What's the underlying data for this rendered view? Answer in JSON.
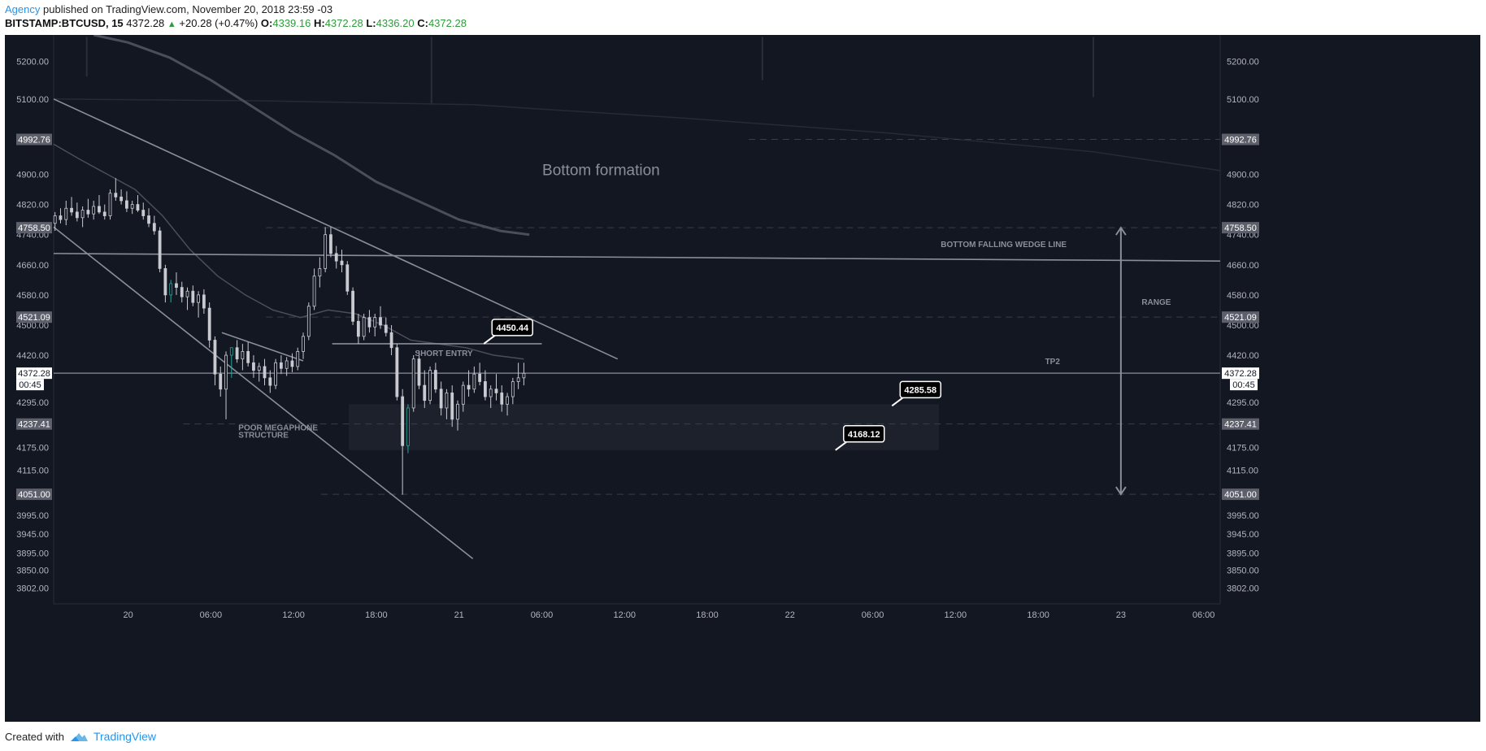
{
  "header": {
    "author": "Agency",
    "published_text": "published on TradingView.com, November 20, 2018 23:59 -03",
    "symbol": "BITSTAMP:BTCUSD, 15",
    "last_price": "4372.28",
    "change_arrow": "▲",
    "change": "+20.28 (+0.47%)",
    "o_label": "O:",
    "o_value": "4339.16",
    "h_label": "H:",
    "h_value": "4372.28",
    "l_label": "L:",
    "l_value": "4336.20",
    "c_label": "C:",
    "c_value": "4372.28"
  },
  "footer": {
    "created_with": "Created with",
    "brand": "TradingView",
    "brand_icon": "tradingview-cloud-icon"
  },
  "colors": {
    "background": "#131722",
    "axis_text": "#b2b5be",
    "grid": "#1e2230",
    "line": "#8a8e99",
    "ma": "#4a4e5a",
    "candle": "#c8cad0",
    "candle_teal": "#26a69a",
    "box": "#1e222d",
    "accent": "#2196f3",
    "up_green": "#2e9c3a"
  },
  "chart_data": {
    "type": "candlestick",
    "title": "",
    "ylim": [
      3760,
      5270
    ],
    "yticks": [
      "5200.00",
      "5100.00",
      "4900.00",
      "4820.00",
      "4740.00",
      "4660.00",
      "4580.00",
      "4500.00",
      "4420.00",
      "4295.00",
      "4175.00",
      "4115.00",
      "3995.00",
      "3945.00",
      "3895.00",
      "3850.00",
      "3802.00"
    ],
    "ytick_values": [
      5200,
      5100,
      4900,
      4820,
      4740,
      4660,
      4580,
      4500,
      4420,
      4295,
      4175,
      4115,
      3995,
      3945,
      3895,
      3850,
      3802
    ],
    "highlight_levels": [
      "4992.76",
      "4758.50",
      "4521.09",
      "4372.28",
      "4237.41",
      "4051.00"
    ],
    "highlight_values": [
      4992.76,
      4758.5,
      4521.09,
      4372.28,
      4237.41,
      4051.0
    ],
    "countdown": "00:45",
    "x_labels": [
      "20",
      "06:00",
      "12:00",
      "18:00",
      "21",
      "06:00",
      "12:00",
      "18:00",
      "22",
      "06:00",
      "12:00",
      "18:00",
      "23",
      "06:00"
    ],
    "x_label_hours": [
      0,
      6,
      12,
      18,
      24,
      30,
      36,
      42,
      48,
      54,
      60,
      66,
      72,
      78
    ],
    "x_start_hour": -5.4,
    "x_end_hour": 79.2,
    "candles": [
      {
        "t": -5.3,
        "o": 4770,
        "h": 4800,
        "l": 4750,
        "c": 4790
      },
      {
        "t": -4.9,
        "o": 4790,
        "h": 4810,
        "l": 4770,
        "c": 4780
      },
      {
        "t": -4.5,
        "o": 4780,
        "h": 4830,
        "l": 4765,
        "c": 4810
      },
      {
        "t": -4.1,
        "o": 4810,
        "h": 4840,
        "l": 4790,
        "c": 4800
      },
      {
        "t": -3.7,
        "o": 4800,
        "h": 4825,
        "l": 4775,
        "c": 4785
      },
      {
        "t": -3.3,
        "o": 4785,
        "h": 4815,
        "l": 4760,
        "c": 4805
      },
      {
        "t": -2.9,
        "o": 4805,
        "h": 4835,
        "l": 4785,
        "c": 4795
      },
      {
        "t": -2.5,
        "o": 4795,
        "h": 4830,
        "l": 4780,
        "c": 4815
      },
      {
        "t": -2.1,
        "o": 4815,
        "h": 4845,
        "l": 4795,
        "c": 4800
      },
      {
        "t": -1.7,
        "o": 4800,
        "h": 4820,
        "l": 4780,
        "c": 4790
      },
      {
        "t": -1.3,
        "o": 4790,
        "h": 4860,
        "l": 4780,
        "c": 4850
      },
      {
        "t": -0.9,
        "o": 4850,
        "h": 4890,
        "l": 4830,
        "c": 4840
      },
      {
        "t": -0.5,
        "o": 4840,
        "h": 4860,
        "l": 4820,
        "c": 4830
      },
      {
        "t": -0.1,
        "o": 4830,
        "h": 4855,
        "l": 4800,
        "c": 4810
      },
      {
        "t": 0.3,
        "o": 4810,
        "h": 4830,
        "l": 4795,
        "c": 4820
      },
      {
        "t": 0.7,
        "o": 4820,
        "h": 4845,
        "l": 4800,
        "c": 4805
      },
      {
        "t": 1.1,
        "o": 4805,
        "h": 4825,
        "l": 4780,
        "c": 4790
      },
      {
        "t": 1.5,
        "o": 4790,
        "h": 4810,
        "l": 4760,
        "c": 4770
      },
      {
        "t": 1.9,
        "o": 4770,
        "h": 4790,
        "l": 4740,
        "c": 4750
      },
      {
        "t": 2.3,
        "o": 4750,
        "h": 4760,
        "l": 4640,
        "c": 4650
      },
      {
        "t": 2.7,
        "o": 4650,
        "h": 4660,
        "l": 4560,
        "c": 4580
      },
      {
        "t": 3.1,
        "o": 4580,
        "h": 4620,
        "l": 4560,
        "c": 4610,
        "teal": true
      },
      {
        "t": 3.5,
        "o": 4610,
        "h": 4640,
        "l": 4580,
        "c": 4600
      },
      {
        "t": 3.9,
        "o": 4600,
        "h": 4615,
        "l": 4560,
        "c": 4575
      },
      {
        "t": 4.3,
        "o": 4575,
        "h": 4600,
        "l": 4540,
        "c": 4590
      },
      {
        "t": 4.7,
        "o": 4590,
        "h": 4605,
        "l": 4550,
        "c": 4560
      },
      {
        "t": 5.1,
        "o": 4560,
        "h": 4590,
        "l": 4520,
        "c": 4580
      },
      {
        "t": 5.5,
        "o": 4580,
        "h": 4595,
        "l": 4530,
        "c": 4545
      },
      {
        "t": 5.9,
        "o": 4545,
        "h": 4560,
        "l": 4440,
        "c": 4460
      },
      {
        "t": 6.3,
        "o": 4460,
        "h": 4470,
        "l": 4340,
        "c": 4370
      },
      {
        "t": 6.7,
        "o": 4370,
        "h": 4390,
        "l": 4310,
        "c": 4330
      },
      {
        "t": 7.1,
        "o": 4330,
        "h": 4430,
        "l": 4250,
        "c": 4420
      },
      {
        "t": 7.5,
        "o": 4420,
        "h": 4440,
        "l": 4360,
        "c": 4440,
        "teal": true
      },
      {
        "t": 7.9,
        "o": 4440,
        "h": 4460,
        "l": 4400,
        "c": 4410
      },
      {
        "t": 8.3,
        "o": 4410,
        "h": 4450,
        "l": 4380,
        "c": 4430
      },
      {
        "t": 8.7,
        "o": 4430,
        "h": 4455,
        "l": 4390,
        "c": 4400
      },
      {
        "t": 9.1,
        "o": 4400,
        "h": 4420,
        "l": 4360,
        "c": 4380
      },
      {
        "t": 9.5,
        "o": 4380,
        "h": 4400,
        "l": 4350,
        "c": 4390
      },
      {
        "t": 9.9,
        "o": 4390,
        "h": 4410,
        "l": 4340,
        "c": 4360
      },
      {
        "t": 10.3,
        "o": 4360,
        "h": 4380,
        "l": 4320,
        "c": 4340
      },
      {
        "t": 10.7,
        "o": 4340,
        "h": 4410,
        "l": 4330,
        "c": 4400
      },
      {
        "t": 11.1,
        "o": 4400,
        "h": 4420,
        "l": 4370,
        "c": 4385
      },
      {
        "t": 11.5,
        "o": 4385,
        "h": 4415,
        "l": 4365,
        "c": 4405
      },
      {
        "t": 11.9,
        "o": 4405,
        "h": 4425,
        "l": 4375,
        "c": 4390
      },
      {
        "t": 12.3,
        "o": 4390,
        "h": 4440,
        "l": 4380,
        "c": 4430
      },
      {
        "t": 12.7,
        "o": 4430,
        "h": 4480,
        "l": 4410,
        "c": 4470
      },
      {
        "t": 13.1,
        "o": 4470,
        "h": 4560,
        "l": 4460,
        "c": 4550
      },
      {
        "t": 13.5,
        "o": 4550,
        "h": 4650,
        "l": 4540,
        "c": 4630
      },
      {
        "t": 13.9,
        "o": 4630,
        "h": 4680,
        "l": 4600,
        "c": 4650
      },
      {
        "t": 14.3,
        "o": 4650,
        "h": 4760,
        "l": 4640,
        "c": 4740
      },
      {
        "t": 14.7,
        "o": 4740,
        "h": 4760,
        "l": 4680,
        "c": 4690
      },
      {
        "t": 15.1,
        "o": 4690,
        "h": 4710,
        "l": 4650,
        "c": 4670
      },
      {
        "t": 15.5,
        "o": 4670,
        "h": 4700,
        "l": 4640,
        "c": 4660
      },
      {
        "t": 15.9,
        "o": 4660,
        "h": 4670,
        "l": 4580,
        "c": 4590
      },
      {
        "t": 16.3,
        "o": 4590,
        "h": 4600,
        "l": 4500,
        "c": 4510
      },
      {
        "t": 16.7,
        "o": 4510,
        "h": 4530,
        "l": 4450,
        "c": 4470
      },
      {
        "t": 17.1,
        "o": 4470,
        "h": 4530,
        "l": 4460,
        "c": 4520
      },
      {
        "t": 17.5,
        "o": 4520,
        "h": 4540,
        "l": 4480,
        "c": 4495
      },
      {
        "t": 17.9,
        "o": 4495,
        "h": 4530,
        "l": 4470,
        "c": 4520
      },
      {
        "t": 18.3,
        "o": 4520,
        "h": 4550,
        "l": 4490,
        "c": 4500
      },
      {
        "t": 18.7,
        "o": 4500,
        "h": 4520,
        "l": 4470,
        "c": 4480
      },
      {
        "t": 19.1,
        "o": 4480,
        "h": 4500,
        "l": 4420,
        "c": 4440
      },
      {
        "t": 19.5,
        "o": 4440,
        "h": 4450,
        "l": 4300,
        "c": 4310
      },
      {
        "t": 19.9,
        "o": 4310,
        "h": 4330,
        "l": 4050,
        "c": 4180
      },
      {
        "t": 20.3,
        "o": 4180,
        "h": 4290,
        "l": 4160,
        "c": 4280,
        "teal": true
      },
      {
        "t": 20.7,
        "o": 4280,
        "h": 4420,
        "l": 4270,
        "c": 4410
      },
      {
        "t": 21.1,
        "o": 4410,
        "h": 4430,
        "l": 4330,
        "c": 4340
      },
      {
        "t": 21.5,
        "o": 4340,
        "h": 4380,
        "l": 4280,
        "c": 4300
      },
      {
        "t": 21.9,
        "o": 4300,
        "h": 4390,
        "l": 4290,
        "c": 4380
      },
      {
        "t": 22.3,
        "o": 4380,
        "h": 4400,
        "l": 4320,
        "c": 4330
      },
      {
        "t": 22.7,
        "o": 4330,
        "h": 4350,
        "l": 4260,
        "c": 4280
      },
      {
        "t": 23.1,
        "o": 4280,
        "h": 4330,
        "l": 4250,
        "c": 4320
      },
      {
        "t": 23.5,
        "o": 4320,
        "h": 4340,
        "l": 4230,
        "c": 4250
      },
      {
        "t": 23.9,
        "o": 4250,
        "h": 4300,
        "l": 4220,
        "c": 4290
      },
      {
        "t": 24.3,
        "o": 4290,
        "h": 4350,
        "l": 4270,
        "c": 4340
      },
      {
        "t": 24.7,
        "o": 4340,
        "h": 4380,
        "l": 4310,
        "c": 4330
      },
      {
        "t": 25.1,
        "o": 4330,
        "h": 4390,
        "l": 4320,
        "c": 4370
      },
      {
        "t": 25.5,
        "o": 4370,
        "h": 4400,
        "l": 4340,
        "c": 4350
      },
      {
        "t": 25.9,
        "o": 4350,
        "h": 4380,
        "l": 4300,
        "c": 4310
      },
      {
        "t": 26.3,
        "o": 4310,
        "h": 4340,
        "l": 4280,
        "c": 4330
      },
      {
        "t": 26.7,
        "o": 4330,
        "h": 4370,
        "l": 4300,
        "c": 4320
      },
      {
        "t": 27.1,
        "o": 4320,
        "h": 4340,
        "l": 4270,
        "c": 4290
      },
      {
        "t": 27.5,
        "o": 4290,
        "h": 4320,
        "l": 4260,
        "c": 4310
      },
      {
        "t": 27.9,
        "o": 4310,
        "h": 4360,
        "l": 4290,
        "c": 4350
      },
      {
        "t": 28.3,
        "o": 4350,
        "h": 4400,
        "l": 4330,
        "c": 4360
      },
      {
        "t": 28.7,
        "o": 4360,
        "h": 4400,
        "l": 4340,
        "c": 4372
      }
    ],
    "ma_short": [
      [
        -5.4,
        4980
      ],
      [
        -3.5,
        4940
      ],
      [
        -1.5,
        4900
      ],
      [
        0.5,
        4860
      ],
      [
        2.5,
        4790
      ],
      [
        4.5,
        4700
      ],
      [
        6.5,
        4630
      ],
      [
        8.5,
        4580
      ],
      [
        10.5,
        4540
      ],
      [
        12.5,
        4520
      ],
      [
        14.5,
        4540
      ],
      [
        16.5,
        4530
      ],
      [
        18.5,
        4500
      ],
      [
        20.5,
        4460
      ],
      [
        22.5,
        4450
      ],
      [
        24.5,
        4440
      ],
      [
        26.5,
        4420
      ],
      [
        28.7,
        4410
      ]
    ],
    "ma_long": [
      [
        -2.5,
        5270
      ],
      [
        0,
        5250
      ],
      [
        3,
        5210
      ],
      [
        6,
        5150
      ],
      [
        9,
        5080
      ],
      [
        12,
        5010
      ],
      [
        15,
        4950
      ],
      [
        18,
        4880
      ],
      [
        21,
        4830
      ],
      [
        24,
        4780
      ],
      [
        27,
        4750
      ],
      [
        29.1,
        4740
      ]
    ],
    "ma_faint": [
      [
        -5.4,
        5100
      ],
      [
        10,
        5095
      ],
      [
        25,
        5085
      ],
      [
        40,
        5050
      ],
      [
        55,
        5010
      ],
      [
        70,
        4960
      ],
      [
        79.2,
        4910
      ]
    ],
    "vertical_ticks": [
      [
        -3,
        5265,
        5160
      ],
      [
        22,
        5265,
        5085
      ],
      [
        46,
        5265,
        5150
      ],
      [
        70,
        5265,
        5105
      ]
    ],
    "trendlines": [
      {
        "name": "upper-falling-wedge-line",
        "x1": -5.4,
        "y1": 5100,
        "x2": 35.5,
        "y2": 4410
      },
      {
        "name": "lower-channel-line",
        "x1": -5.4,
        "y1": 4760,
        "x2": 25,
        "y2": 3880
      },
      {
        "name": "bottom-falling-wedge-line",
        "x1": -5.4,
        "y1": 4690,
        "x2": 79.2,
        "y2": 4670
      },
      {
        "name": "megaphone-line",
        "x1": 6.8,
        "y1": 4480,
        "x2": 12.7,
        "y2": 4405
      },
      {
        "name": "short-entry-line",
        "x1": 14.8,
        "y1": 4450.44,
        "x2": 30,
        "y2": 4450.44
      },
      {
        "name": "current-price-line",
        "x1": -5.4,
        "y1": 4372.28,
        "x2": 79.2,
        "y2": 4372.28
      }
    ],
    "dashed_levels": [
      {
        "name": "level-4992-dashed",
        "y": 4992.76,
        "x1": 45,
        "x2": 79.2
      },
      {
        "name": "level-4758-dashed",
        "y": 4758.5,
        "x1": 10,
        "x2": 79.2
      },
      {
        "name": "level-4521-dashed",
        "y": 4521.09,
        "x1": 10,
        "x2": 79.2
      },
      {
        "name": "level-4237-dashed",
        "y": 4237.41,
        "x1": 4,
        "x2": 79.2
      },
      {
        "name": "level-4051-dashed",
        "y": 4051.0,
        "x1": 14,
        "x2": 79.2
      }
    ],
    "zone": {
      "x1": 16,
      "x2": 58.8,
      "y1": 4290,
      "y2": 4168
    },
    "range_arrow": {
      "x": 72,
      "y1": 4758.5,
      "y2": 4051.0
    },
    "annotations": {
      "bottom_formation": "Bottom formation",
      "bottom_falling_wedge_line": "BOTTOM FALLING WEDGE LINE",
      "range": "RANGE",
      "tp2": "TP2",
      "short_entry": "SHORT ENTRY",
      "poor_megaphone_1": "POOR MEGAPHONE",
      "poor_megaphone_2": "STRUCTURE"
    },
    "callouts": [
      {
        "name": "callout-4450",
        "label": "4450.44",
        "x": 25.8,
        "y": 4450.44
      },
      {
        "name": "callout-4285",
        "label": "4285.58",
        "x": 55.4,
        "y": 4285.58
      },
      {
        "name": "callout-4168",
        "label": "4168.12",
        "x": 51.3,
        "y": 4168.12
      }
    ]
  }
}
